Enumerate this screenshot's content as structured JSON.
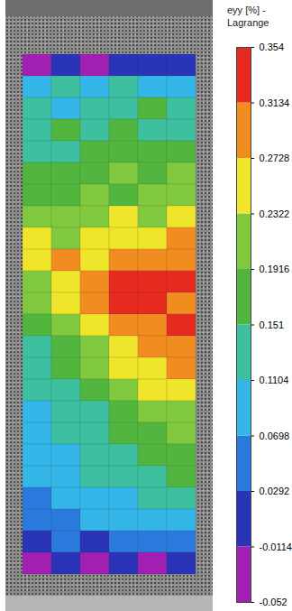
{
  "chart_data": {
    "type": "heatmap",
    "title": "eyy [%] -",
    "subtitle": "Lagrange",
    "tick_labels": false,
    "cells": [
      [
        -0.02,
        0.01,
        -0.03,
        0.0,
        -0.01,
        0.02
      ],
      [
        0.08,
        0.12,
        0.09,
        0.13,
        0.11,
        0.1
      ],
      [
        0.14,
        0.1,
        0.15,
        0.12,
        0.16,
        0.13
      ],
      [
        0.12,
        0.16,
        0.13,
        0.17,
        0.14,
        0.15
      ],
      [
        0.15,
        0.13,
        0.17,
        0.16,
        0.19,
        0.17
      ],
      [
        0.17,
        0.19,
        0.16,
        0.2,
        0.18,
        0.21
      ],
      [
        0.19,
        0.17,
        0.21,
        0.19,
        0.22,
        0.2
      ],
      [
        0.21,
        0.23,
        0.2,
        0.24,
        0.22,
        0.25
      ],
      [
        0.24,
        0.22,
        0.25,
        0.27,
        0.26,
        0.28
      ],
      [
        0.25,
        0.28,
        0.27,
        0.29,
        0.3,
        0.29
      ],
      [
        0.22,
        0.26,
        0.3,
        0.32,
        0.34,
        0.32
      ],
      [
        0.2,
        0.24,
        0.29,
        0.33,
        0.32,
        0.3
      ],
      [
        0.18,
        0.22,
        0.25,
        0.28,
        0.31,
        0.33
      ],
      [
        0.15,
        0.19,
        0.23,
        0.26,
        0.29,
        0.31
      ],
      [
        0.13,
        0.16,
        0.2,
        0.24,
        0.27,
        0.28
      ],
      [
        0.12,
        0.14,
        0.17,
        0.21,
        0.24,
        0.25
      ],
      [
        0.1,
        0.13,
        0.15,
        0.18,
        0.21,
        0.22
      ],
      [
        0.11,
        0.12,
        0.14,
        0.16,
        0.19,
        0.2
      ],
      [
        0.09,
        0.11,
        0.13,
        0.15,
        0.17,
        0.18
      ],
      [
        0.08,
        0.1,
        0.12,
        0.13,
        0.15,
        0.16
      ],
      [
        0.06,
        0.08,
        0.1,
        0.11,
        0.12,
        0.13
      ],
      [
        0.04,
        0.06,
        0.07,
        0.09,
        0.1,
        0.11
      ],
      [
        0.01,
        0.03,
        0.02,
        0.05,
        0.04,
        0.06
      ],
      [
        -0.03,
        -0.01,
        -0.04,
        0.0,
        -0.02,
        -0.01
      ]
    ],
    "colorbar_range": [
      -0.052,
      0.354
    ],
    "colorbar_ticks": [
      -0.052,
      -0.0114,
      0.0292,
      0.0698,
      0.1104,
      0.151,
      0.1916,
      0.2322,
      0.2728,
      0.3134,
      0.354
    ],
    "colorbar_colors": [
      "#a21fb4",
      "#2a34b6",
      "#2a7ade",
      "#34b6e8",
      "#3ebfa0",
      "#52b63e",
      "#80c93e",
      "#efe52a",
      "#f08c20",
      "#e62a20"
    ]
  }
}
